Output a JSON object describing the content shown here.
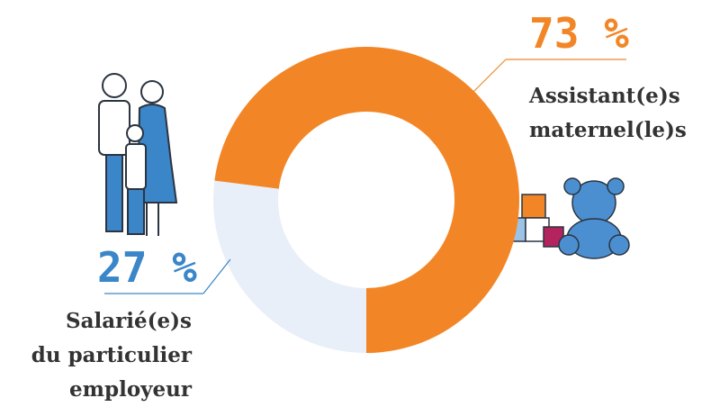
{
  "chart_data": {
    "type": "donut",
    "categories": [
      "Assistant(e)s\nmaternel(le)s",
      "Salarié(e)s\ndu particulier\nemployeur"
    ],
    "values": [
      73,
      27
    ],
    "value_labels": [
      "73 %",
      "27 %"
    ],
    "colors": [
      "#f28627",
      "#e9eff8"
    ],
    "label_colors": [
      "#f28627",
      "#3a86c8"
    ]
  }
}
